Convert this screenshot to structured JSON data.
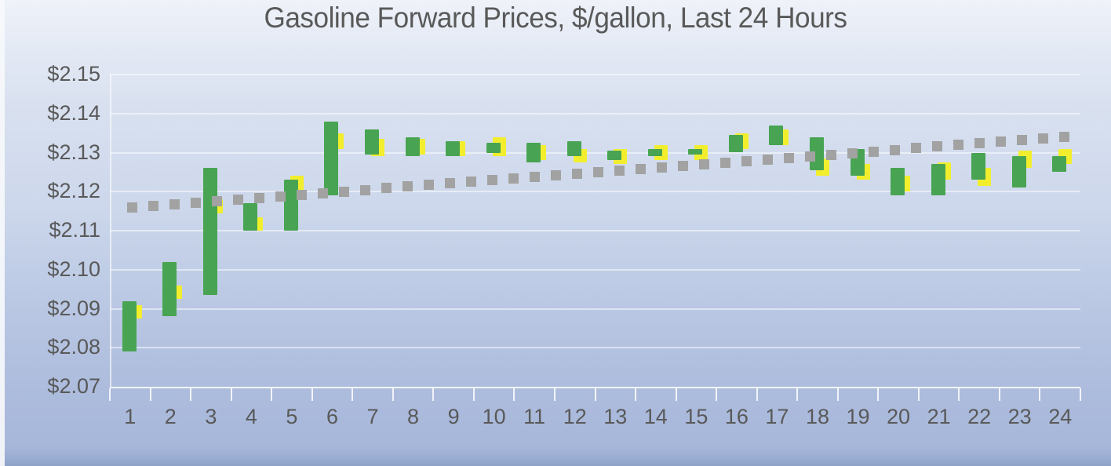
{
  "title": "Gasoline Forward Prices, $/gallon, Last 24 Hours",
  "colors": {
    "green_bar": "#48a452",
    "yellow_bar": "#f2ee2e",
    "trendline_gray": "#a2a2a2",
    "text_gray": "#595959"
  },
  "chart_data": {
    "type": "bar",
    "subtype": "floating-range-bars-with-dotted-trendline",
    "title": "Gasoline Forward Prices, $/gallon, Last 24 Hours",
    "xlabel": "",
    "ylabel": "",
    "legend": false,
    "grid": true,
    "categories": [
      "1",
      "2",
      "3",
      "4",
      "5",
      "6",
      "7",
      "8",
      "9",
      "10",
      "11",
      "12",
      "13",
      "14",
      "15",
      "16",
      "17",
      "18",
      "19",
      "20",
      "21",
      "22",
      "23",
      "24"
    ],
    "y_axis": {
      "min": 2.07,
      "max": 2.15,
      "tick_format": "$0.00",
      "ticks": [
        {
          "label": "$2.15",
          "value": 2.15
        },
        {
          "label": "$2.14",
          "value": 2.14
        },
        {
          "label": "$2.13",
          "value": 2.13
        },
        {
          "label": "$2.12",
          "value": 2.12
        },
        {
          "label": "$2.11",
          "value": 2.11
        },
        {
          "label": "$2.10",
          "value": 2.1
        },
        {
          "label": "$2.09",
          "value": 2.09
        },
        {
          "label": "$2.08",
          "value": 2.08
        },
        {
          "label": "$2.07",
          "value": 2.07
        }
      ]
    },
    "series": [
      {
        "name": "price-range-green",
        "color": "#48a452",
        "bars": [
          {
            "low": 2.079,
            "high": 2.092
          },
          {
            "low": 2.088,
            "high": 2.102
          },
          {
            "low": 2.0935,
            "high": 2.126
          },
          {
            "low": 2.11,
            "high": 2.117
          },
          {
            "low": 2.11,
            "high": 2.123
          },
          {
            "low": 2.119,
            "high": 2.138
          },
          {
            "low": 2.1295,
            "high": 2.136
          },
          {
            "low": 2.129,
            "high": 2.134
          },
          {
            "low": 2.129,
            "high": 2.133
          },
          {
            "low": 2.13,
            "high": 2.1325
          },
          {
            "low": 2.1275,
            "high": 2.1325
          },
          {
            "low": 2.129,
            "high": 2.133
          },
          {
            "low": 2.128,
            "high": 2.1305
          },
          {
            "low": 2.129,
            "high": 2.131
          },
          {
            "low": 2.1295,
            "high": 2.131
          },
          {
            "low": 2.13,
            "high": 2.1345
          },
          {
            "low": 2.132,
            "high": 2.137
          },
          {
            "low": 2.1255,
            "high": 2.134
          },
          {
            "low": 2.124,
            "high": 2.131
          },
          {
            "low": 2.119,
            "high": 2.126
          },
          {
            "low": 2.119,
            "high": 2.127
          },
          {
            "low": 2.123,
            "high": 2.13
          },
          {
            "low": 2.121,
            "high": 2.129
          },
          {
            "low": 2.125,
            "high": 2.129
          }
        ]
      },
      {
        "name": "price-range-yellow",
        "color": "#f2ee2e",
        "bars": [
          {
            "low": 2.0875,
            "high": 2.091
          },
          {
            "low": 2.0925,
            "high": 2.096
          },
          {
            "low": 2.1145,
            "high": 2.118
          },
          {
            "low": 2.11,
            "high": 2.1135
          },
          {
            "low": 2.12,
            "high": 2.124
          },
          {
            "low": 2.131,
            "high": 2.135
          },
          {
            "low": 2.129,
            "high": 2.1335
          },
          {
            "low": 2.1295,
            "high": 2.1335
          },
          {
            "low": 2.129,
            "high": 2.133
          },
          {
            "low": 2.129,
            "high": 2.134
          },
          {
            "low": 2.128,
            "high": 2.132
          },
          {
            "low": 2.1275,
            "high": 2.131
          },
          {
            "low": 2.127,
            "high": 2.131
          },
          {
            "low": 2.128,
            "high": 2.132
          },
          {
            "low": 2.128,
            "high": 2.132
          },
          {
            "low": 2.131,
            "high": 2.135
          },
          {
            "low": 2.132,
            "high": 2.136
          },
          {
            "low": 2.124,
            "high": 2.1285
          },
          {
            "low": 2.123,
            "high": 2.127
          },
          {
            "low": 2.12,
            "high": 2.124
          },
          {
            "low": 2.123,
            "high": 2.1275
          },
          {
            "low": 2.1215,
            "high": 2.126
          },
          {
            "low": 2.126,
            "high": 2.1305
          },
          {
            "low": 2.127,
            "high": 2.131
          }
        ]
      }
    ],
    "trendline": {
      "style": "dotted-squares",
      "color": "#a2a2a2",
      "start_category": "1",
      "end_category": "24",
      "start_value": 2.116,
      "end_value": 2.134
    }
  }
}
